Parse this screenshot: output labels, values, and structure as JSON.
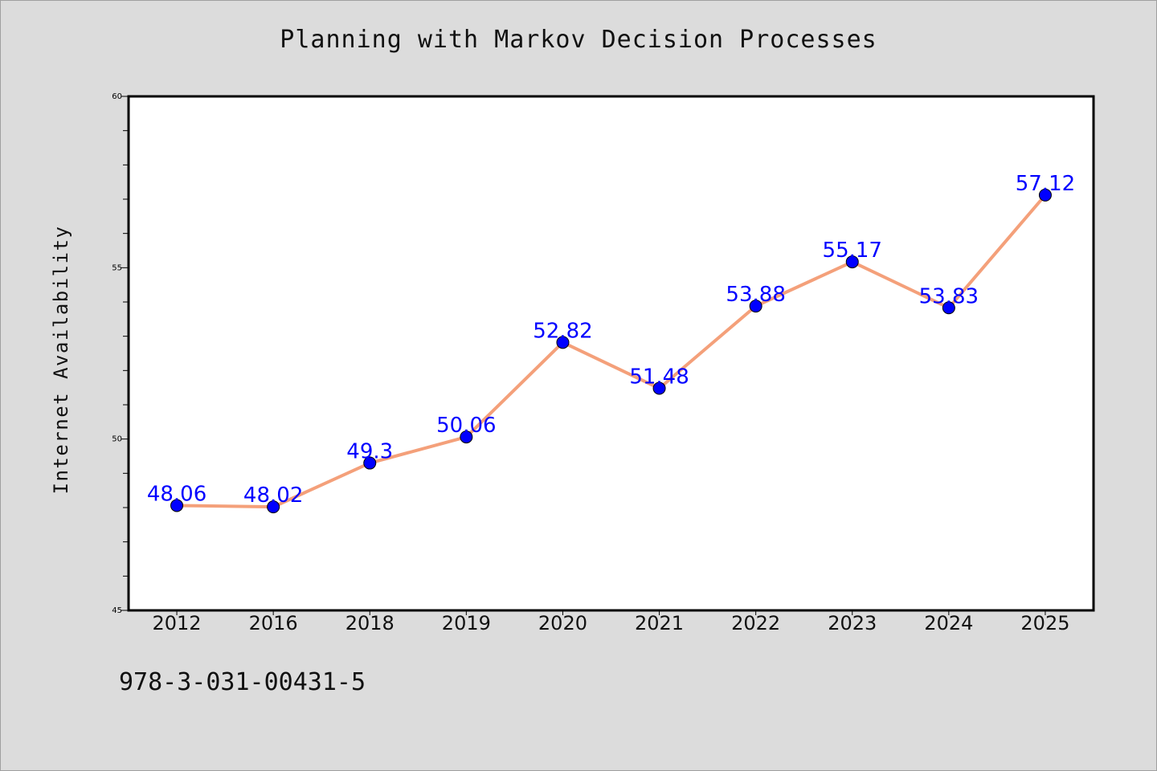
{
  "page": {
    "title": "Planning with Markov Decision Processes",
    "footer_id": "978-3-031-00431-5"
  },
  "chart_data": {
    "type": "line",
    "title": "Planning with Markov Decision Processes",
    "xlabel": "",
    "ylabel": "Internet Availability",
    "categories": [
      "2012",
      "2016",
      "2018",
      "2019",
      "2020",
      "2021",
      "2022",
      "2023",
      "2024",
      "2025"
    ],
    "series": [
      {
        "values": [
          48.06,
          48.02,
          49.3,
          50.06,
          52.82,
          51.48,
          53.88,
          55.17,
          53.83,
          57.12
        ],
        "labels": [
          "48.06",
          "48.02",
          "49.3",
          "50.06",
          "52.82",
          "51.48",
          "53.88",
          "55.17",
          "53.83",
          "57.12"
        ],
        "line_color": "#f4a07a",
        "marker_color": "#0000ff",
        "label_color": "#0000ff"
      }
    ],
    "ylim": [
      45,
      60
    ],
    "yticks": [
      45,
      50,
      55,
      60
    ],
    "grid": false,
    "legend": "none"
  }
}
